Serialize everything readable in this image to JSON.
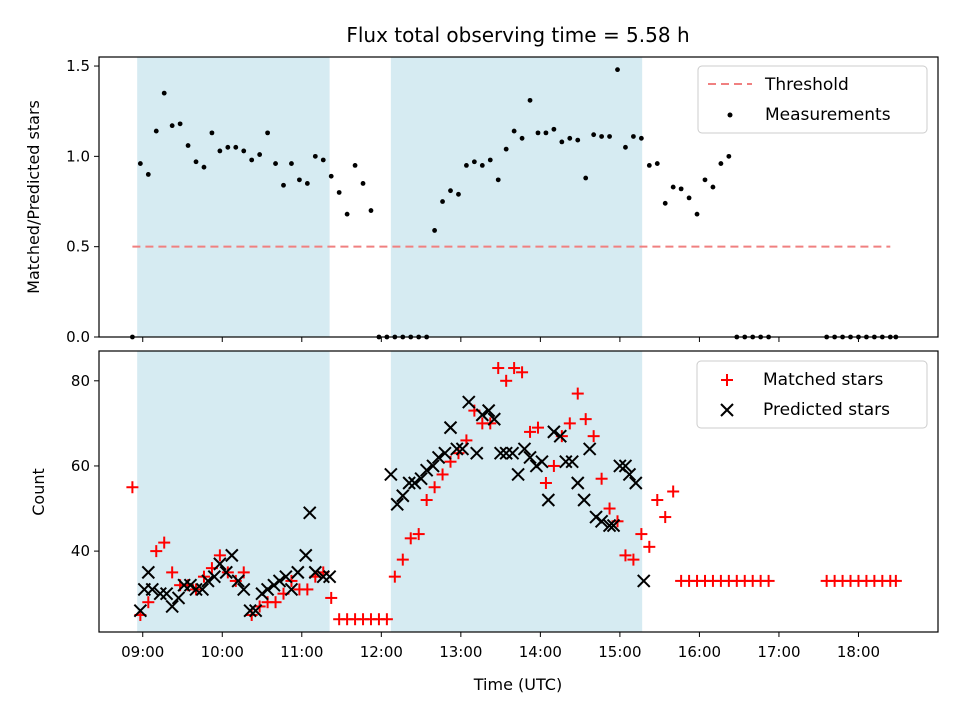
{
  "chart_data": [
    {
      "type": "scatter",
      "panel": "top",
      "title": "Flux total observing time = 5.58 h",
      "ylabel": "Matched/Predicted stars",
      "xlabel": "",
      "xlim": [
        8.45,
        19.0
      ],
      "ylim": [
        0.0,
        1.55
      ],
      "yticks": [
        0.0,
        0.5,
        1.0,
        1.5
      ],
      "ytick_labels": [
        "0.0",
        "0.5",
        "1.0",
        "1.5"
      ],
      "shaded_intervals": [
        [
          8.93,
          11.35
        ],
        [
          12.12,
          15.28
        ]
      ],
      "legend_position": "top-right",
      "threshold": {
        "name": "Threshold",
        "value": 0.5,
        "x_start": 8.87,
        "x_end": 18.4,
        "color": "#f08080"
      },
      "series": [
        {
          "name": "Measurements",
          "color": "#000000",
          "marker": "dot",
          "x": [
            8.87,
            8.97,
            9.07,
            9.17,
            9.27,
            9.37,
            9.47,
            9.57,
            9.67,
            9.77,
            9.87,
            9.97,
            10.07,
            10.17,
            10.27,
            10.37,
            10.47,
            10.57,
            10.67,
            10.77,
            10.87,
            10.97,
            11.07,
            11.17,
            11.27,
            11.37,
            11.47,
            11.57,
            11.67,
            11.77,
            11.87,
            11.97,
            12.07,
            12.17,
            12.27,
            12.37,
            12.47,
            12.57,
            12.67,
            12.77,
            12.87,
            12.97,
            13.07,
            13.17,
            13.27,
            13.37,
            13.47,
            13.57,
            13.67,
            13.77,
            13.87,
            13.97,
            14.07,
            14.17,
            14.27,
            14.37,
            14.47,
            14.57,
            14.67,
            14.77,
            14.87,
            14.97,
            15.07,
            15.17,
            15.27,
            15.37,
            15.47,
            15.57,
            15.67,
            15.77,
            15.87,
            15.97,
            16.07,
            16.17,
            16.27,
            16.37,
            16.47,
            16.57,
            16.67,
            16.77,
            16.87,
            17.6,
            17.7,
            17.8,
            17.9,
            18.0,
            18.1,
            18.2,
            18.3,
            18.4,
            18.47
          ],
          "values": [
            0.0,
            0.96,
            0.9,
            1.14,
            1.35,
            1.17,
            1.18,
            1.06,
            0.97,
            0.94,
            1.13,
            1.03,
            1.05,
            1.05,
            1.03,
            0.98,
            1.01,
            1.13,
            0.96,
            0.84,
            0.96,
            0.87,
            0.85,
            1.0,
            0.98,
            0.89,
            0.8,
            0.68,
            0.95,
            0.85,
            0.7,
            0.0,
            0.0,
            0.0,
            0.0,
            0.0,
            0.0,
            0.0,
            0.59,
            0.75,
            0.81,
            0.79,
            0.95,
            0.97,
            0.95,
            0.98,
            0.87,
            1.04,
            1.14,
            1.1,
            1.31,
            1.13,
            1.13,
            1.15,
            1.08,
            1.1,
            1.09,
            0.88,
            1.12,
            1.11,
            1.11,
            1.48,
            1.05,
            1.11,
            1.1,
            0.95,
            0.96,
            0.74,
            0.83,
            0.82,
            0.77,
            0.68,
            0.87,
            0.83,
            0.96,
            1.0,
            0.0,
            0.0,
            0.0,
            0.0,
            0.0,
            0.0,
            0.0,
            0.0,
            0.0,
            0.0,
            0.0,
            0.0,
            0.0,
            0.0,
            0.0
          ]
        }
      ]
    },
    {
      "type": "scatter",
      "panel": "bottom",
      "ylabel": "Count",
      "xlabel": "Time (UTC)",
      "xlim": [
        8.45,
        19.0
      ],
      "ylim": [
        21,
        87
      ],
      "yticks": [
        40,
        60,
        80
      ],
      "ytick_labels": [
        "40",
        "60",
        "80"
      ],
      "xticks": [
        9,
        10,
        11,
        12,
        13,
        14,
        15,
        16,
        17,
        18
      ],
      "xtick_labels": [
        "09:00",
        "10:00",
        "11:00",
        "12:00",
        "13:00",
        "14:00",
        "15:00",
        "16:00",
        "17:00",
        "18:00"
      ],
      "shaded_intervals": [
        [
          8.93,
          11.35
        ],
        [
          12.12,
          15.28
        ]
      ],
      "legend_position": "top-right",
      "series": [
        {
          "name": "Matched stars",
          "color": "#ff0000",
          "marker": "plus",
          "x": [
            8.87,
            8.97,
            9.07,
            9.17,
            9.27,
            9.37,
            9.47,
            9.57,
            9.67,
            9.77,
            9.87,
            9.97,
            10.07,
            10.17,
            10.27,
            10.37,
            10.47,
            10.57,
            10.67,
            10.77,
            10.87,
            10.97,
            11.07,
            11.17,
            11.27,
            11.37,
            11.47,
            11.57,
            11.67,
            11.77,
            11.87,
            11.97,
            12.07,
            12.17,
            12.27,
            12.37,
            12.47,
            12.57,
            12.67,
            12.77,
            12.87,
            12.97,
            13.07,
            13.17,
            13.27,
            13.37,
            13.47,
            13.57,
            13.67,
            13.77,
            13.87,
            13.97,
            14.07,
            14.17,
            14.27,
            14.37,
            14.47,
            14.57,
            14.67,
            14.77,
            14.87,
            14.97,
            15.07,
            15.17,
            15.27,
            15.37,
            15.47,
            15.57,
            15.67,
            15.77,
            15.87,
            15.97,
            16.07,
            16.17,
            16.27,
            16.37,
            16.47,
            16.57,
            16.67,
            16.77,
            16.87,
            17.6,
            17.7,
            17.8,
            17.9,
            18.0,
            18.1,
            18.2,
            18.3,
            18.4,
            18.47
          ],
          "values": [
            55,
            25,
            28,
            40,
            42,
            35,
            32,
            32,
            31,
            34,
            36,
            39,
            35,
            33,
            35,
            25,
            27,
            28,
            28,
            30,
            33,
            31,
            31,
            34,
            35,
            29,
            24,
            24,
            24,
            24,
            24,
            24,
            24,
            34,
            38,
            43,
            44,
            52,
            55,
            58,
            61,
            63,
            66,
            73,
            70,
            70,
            83,
            80,
            83,
            82,
            68,
            69,
            56,
            60,
            67,
            70,
            77,
            71,
            67,
            57,
            50,
            47,
            39,
            38,
            44,
            41,
            52,
            48,
            54,
            33,
            33,
            33,
            33,
            33,
            33,
            33,
            33,
            33,
            33,
            33,
            33,
            33,
            33,
            33,
            33,
            33,
            33,
            33,
            33,
            33,
            33
          ]
        },
        {
          "name": "Predicted stars",
          "color": "#000000",
          "marker": "x",
          "x": [
            8.97,
            9.02,
            9.07,
            9.12,
            9.22,
            9.3,
            9.37,
            9.45,
            9.52,
            9.6,
            9.67,
            9.75,
            9.82,
            9.9,
            9.97,
            10.05,
            10.12,
            10.2,
            10.27,
            10.35,
            10.42,
            10.5,
            10.57,
            10.65,
            10.72,
            10.8,
            10.87,
            10.95,
            11.05,
            11.1,
            11.17,
            11.27,
            11.35,
            12.12,
            12.2,
            12.27,
            12.35,
            12.42,
            12.5,
            12.57,
            12.65,
            12.72,
            12.8,
            12.87,
            12.95,
            13.02,
            13.1,
            13.2,
            13.27,
            13.35,
            13.42,
            13.5,
            13.57,
            13.65,
            13.72,
            13.8,
            13.87,
            13.95,
            14.02,
            14.1,
            14.17,
            14.25,
            14.32,
            14.4,
            14.47,
            14.55,
            14.62,
            14.7,
            14.77,
            14.87,
            14.92,
            15.0,
            15.07,
            15.12,
            15.2,
            15.3
          ],
          "values": [
            26,
            31,
            35,
            31,
            30,
            30,
            27,
            29,
            32,
            32,
            31,
            31,
            33,
            34,
            37,
            35,
            39,
            33,
            31,
            26,
            26,
            30,
            31,
            32,
            33,
            34,
            31,
            35,
            39,
            49,
            35,
            34,
            34,
            58,
            51,
            53,
            56,
            56,
            57,
            59,
            60,
            62,
            63,
            69,
            64,
            64,
            75,
            63,
            72,
            73,
            71,
            63,
            63,
            63,
            58,
            64,
            62,
            60,
            61,
            52,
            68,
            67,
            61,
            61,
            56,
            52,
            64,
            48,
            47,
            46,
            46,
            60,
            60,
            58,
            56,
            33
          ]
        }
      ]
    }
  ]
}
